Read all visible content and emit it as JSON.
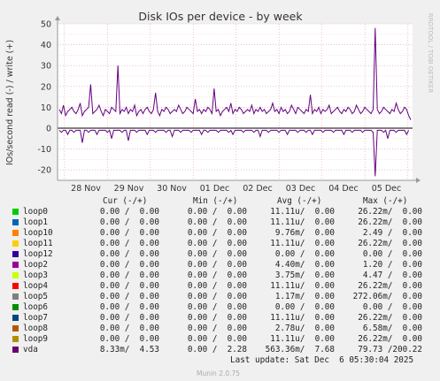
{
  "chart_data": {
    "type": "line",
    "title": "Disk IOs per device - by week",
    "ylabel": "IOs/second read (-) / write (+)",
    "side_label": "RRDTOOL / TOBI OETIKER",
    "ylim": [
      -25,
      50
    ],
    "yticks": [
      -20,
      -10,
      0,
      10,
      20,
      30,
      40,
      50
    ],
    "xticks": [
      "28 Nov",
      "29 Nov",
      "30 Nov",
      "01 Dec",
      "02 Dec",
      "03 Dec",
      "04 Dec",
      "05 Dec"
    ],
    "grid": true,
    "series": [
      {
        "name": "vda",
        "color": "#660080",
        "write_values": [
          9,
          7,
          11,
          6,
          8,
          9,
          10,
          8,
          7,
          9,
          12,
          6,
          8,
          9,
          10,
          21,
          7,
          8,
          9,
          11,
          8,
          6,
          9,
          8,
          7,
          10,
          9,
          8,
          30,
          7,
          9,
          8,
          10,
          7,
          9,
          8,
          11,
          6,
          8,
          9,
          7,
          9,
          10,
          8,
          7,
          9,
          17,
          8,
          6,
          9,
          8,
          10,
          9,
          7,
          8,
          9,
          8,
          11,
          9,
          7,
          8,
          10,
          9,
          8,
          7,
          14,
          8,
          9,
          7,
          9,
          8,
          10,
          9,
          7,
          19,
          8,
          9,
          6,
          8,
          9,
          10,
          8,
          12,
          7,
          9,
          8,
          10,
          9,
          7,
          8,
          9,
          8,
          11,
          7,
          9,
          8,
          10,
          8,
          9,
          7,
          8,
          9,
          12,
          8,
          9,
          7,
          10,
          8,
          9,
          7,
          8,
          11,
          9,
          7,
          10,
          9,
          8,
          7,
          9,
          8,
          16,
          7,
          9,
          8,
          10,
          7,
          9,
          8,
          9,
          11,
          7,
          8,
          9,
          10,
          8,
          7,
          9,
          8,
          10,
          9,
          7,
          8,
          11,
          9,
          7,
          8,
          10,
          9,
          8,
          7,
          9,
          48,
          9,
          7,
          8,
          10,
          9,
          8,
          7,
          9,
          8,
          12,
          9,
          7,
          8,
          10,
          9,
          6,
          4
        ],
        "read_values": [
          -1,
          -2,
          -1,
          -1,
          -3,
          -1,
          -1,
          -2,
          -1,
          -1,
          -1,
          -7,
          -1,
          -1,
          -2,
          -1,
          -1,
          -1,
          -3,
          -1,
          -1,
          -1,
          -1,
          -2,
          -1,
          -5,
          -1,
          -1,
          -1,
          -1,
          -2,
          -1,
          -1,
          -6,
          -1,
          -1,
          -1,
          -2,
          -1,
          -1,
          -1,
          -1,
          -3,
          -1,
          -1,
          -1,
          -2,
          -1,
          -1,
          -1,
          -1,
          -2,
          -1,
          -1,
          -4,
          -1,
          -1,
          -1,
          -2,
          -1,
          -1,
          -1,
          -1,
          -2,
          -1,
          -1,
          -1,
          -1,
          -3,
          -1,
          -1,
          -2,
          -1,
          -1,
          -1,
          -1,
          -2,
          -1,
          -1,
          -1,
          -1,
          -2,
          -1,
          -3,
          -1,
          -1,
          -1,
          -1,
          -2,
          -1,
          -1,
          -1,
          -1,
          -2,
          -1,
          -1,
          -4,
          -1,
          -1,
          -1,
          -2,
          -1,
          -1,
          -1,
          -1,
          -2,
          -1,
          -1,
          -1,
          -3,
          -1,
          -1,
          -1,
          -1,
          -2,
          -1,
          -1,
          -1,
          -2,
          -1,
          -1,
          -3,
          -1,
          -1,
          -1,
          -1,
          -2,
          -1,
          -1,
          -1,
          -1,
          -2,
          -1,
          -1,
          -1,
          -1,
          -3,
          -1,
          -1,
          -1,
          -2,
          -1,
          -1,
          -1,
          -1,
          -2,
          -1,
          -1,
          -1,
          -1,
          -2,
          -23,
          -1,
          -1,
          -1,
          -2,
          -1,
          -5,
          -1,
          -1,
          -1,
          -2,
          -1,
          -1,
          -1,
          -1,
          -3,
          -1
        ]
      }
    ]
  },
  "legend": {
    "headers": {
      "cur": "Cur (-/+)",
      "min": "Min (-/+)",
      "avg": "Avg (-/+)",
      "max": "Max (-/+)"
    },
    "rows": [
      {
        "name": "loop0",
        "color": "#00cc00",
        "cur": "0.00 /  0.00",
        "min": "0.00 /  0.00",
        "avg": "11.11u/  0.00",
        "max": "26.22m/  0.00"
      },
      {
        "name": "loop1",
        "color": "#0066b3",
        "cur": "0.00 /  0.00",
        "min": "0.00 /  0.00",
        "avg": "11.11u/  0.00",
        "max": "26.22m/  0.00"
      },
      {
        "name": "loop10",
        "color": "#ff8000",
        "cur": "0.00 /  0.00",
        "min": "0.00 /  0.00",
        "avg": "9.76m/  0.00",
        "max": "2.49 /  0.00"
      },
      {
        "name": "loop11",
        "color": "#ffcc00",
        "cur": "0.00 /  0.00",
        "min": "0.00 /  0.00",
        "avg": "11.11u/  0.00",
        "max": "26.22m/  0.00"
      },
      {
        "name": "loop12",
        "color": "#330099",
        "cur": "0.00 /  0.00",
        "min": "0.00 /  0.00",
        "avg": "0.00 /  0.00",
        "max": "0.00 /  0.00"
      },
      {
        "name": "loop2",
        "color": "#990099",
        "cur": "0.00 /  0.00",
        "min": "0.00 /  0.00",
        "avg": "4.40m/  0.00",
        "max": "1.20 /  0.00"
      },
      {
        "name": "loop3",
        "color": "#ccff00",
        "cur": "0.00 /  0.00",
        "min": "0.00 /  0.00",
        "avg": "3.75m/  0.00",
        "max": "4.47 /  0.00"
      },
      {
        "name": "loop4",
        "color": "#ff0000",
        "cur": "0.00 /  0.00",
        "min": "0.00 /  0.00",
        "avg": "11.11u/  0.00",
        "max": "26.22m/  0.00"
      },
      {
        "name": "loop5",
        "color": "#808080",
        "cur": "0.00 /  0.00",
        "min": "0.00 /  0.00",
        "avg": "1.17m/  0.00",
        "max": "272.06m/  0.00"
      },
      {
        "name": "loop6",
        "color": "#008f00",
        "cur": "0.00 /  0.00",
        "min": "0.00 /  0.00",
        "avg": "0.00 /  0.00",
        "max": "0.00 /  0.00"
      },
      {
        "name": "loop7",
        "color": "#00487d",
        "cur": "0.00 /  0.00",
        "min": "0.00 /  0.00",
        "avg": "11.11u/  0.00",
        "max": "26.22m/  0.00"
      },
      {
        "name": "loop8",
        "color": "#b35a00",
        "cur": "0.00 /  0.00",
        "min": "0.00 /  0.00",
        "avg": "2.78u/  0.00",
        "max": "6.58m/  0.00"
      },
      {
        "name": "loop9",
        "color": "#b38f00",
        "cur": "0.00 /  0.00",
        "min": "0.00 /  0.00",
        "avg": "11.11u/  0.00",
        "max": "26.22m/  0.00"
      },
      {
        "name": "vda",
        "color": "#6b006b",
        "cur": "8.33m/  4.53",
        "min": "0.00 /  2.28",
        "avg": "563.36m/  7.68",
        "max": "79.73 /200.22"
      }
    ]
  },
  "footer": {
    "last_update": "Last update: Sat Dec  6 05:30:04 2025",
    "munin": "Munin 2.0.75"
  }
}
